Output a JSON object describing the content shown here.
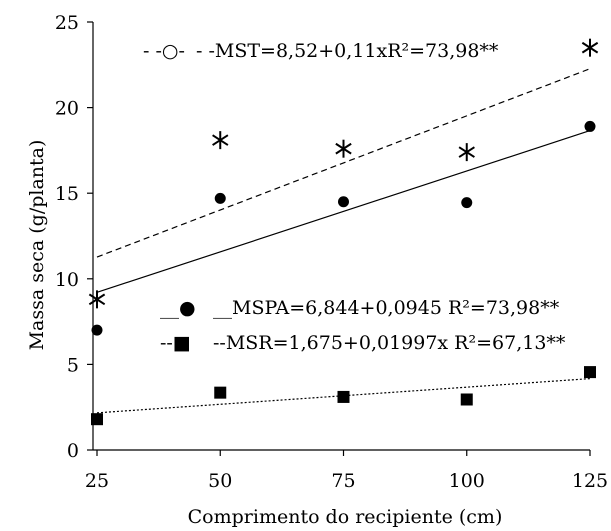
{
  "chart_data": {
    "type": "scatter",
    "xlabel": "Comprimento do recipiente (cm)",
    "ylabel": "Massa seca (g/planta)",
    "xlim": [
      25,
      125
    ],
    "ylim": [
      0,
      25
    ],
    "x_ticks": [
      "25",
      "50",
      "75",
      "100",
      "125"
    ],
    "y_ticks": [
      "0",
      "5",
      "10",
      "15",
      "20",
      "25"
    ],
    "x": [
      25,
      50,
      75,
      100,
      125
    ],
    "series": [
      {
        "key": "mst",
        "marker": "asterisk",
        "line": "dashed",
        "values": [
          8.8,
          18.1,
          17.6,
          17.4,
          23.5
        ],
        "fit": [
          11.27,
          14.02,
          16.77,
          19.52,
          22.27
        ],
        "legend": "- -MST=8,52+0,11xR²=73,98**",
        "legend_prefix": "- -○- "
      },
      {
        "key": "mspa",
        "marker": "circle",
        "line": "solid",
        "values": [
          7.0,
          14.7,
          14.5,
          14.45,
          18.9
        ],
        "fit": [
          9.21,
          11.57,
          13.93,
          16.29,
          18.66
        ],
        "legend": "__MSPA=6,844+0,0945 R²=73,98**",
        "legend_prefix": "__●"
      },
      {
        "key": "msr",
        "marker": "square",
        "line": "dotted",
        "values": [
          1.8,
          3.35,
          3.1,
          2.95,
          4.55
        ],
        "fit": [
          2.17,
          2.67,
          3.17,
          3.67,
          4.17
        ],
        "legend": "--MSR=1,675+0,01997x R²=67,13**",
        "legend_prefix": "--■"
      }
    ]
  }
}
